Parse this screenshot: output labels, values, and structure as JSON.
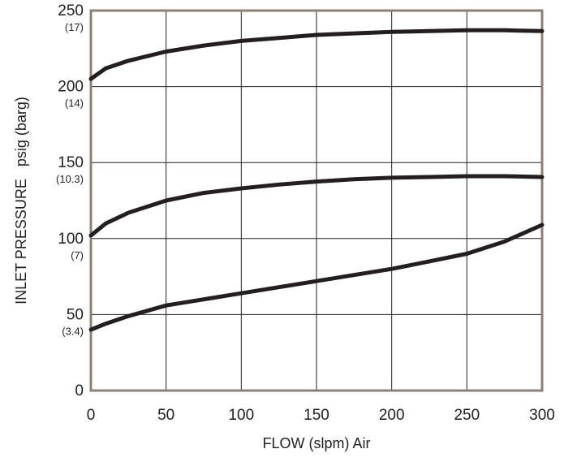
{
  "chart_data": {
    "type": "line",
    "xlabel": "FLOW (slpm) Air",
    "ylabel": "INLET PRESSURE   psig (barg)",
    "xlim": [
      0,
      300
    ],
    "ylim": [
      0,
      250
    ],
    "grid": true,
    "x_ticks": [
      "0",
      "50",
      "100",
      "150",
      "200",
      "250",
      "300"
    ],
    "y_ticks": [
      {
        "value": 0,
        "label": "0",
        "sub": ""
      },
      {
        "value": 50,
        "label": "50",
        "sub": "(3.4)"
      },
      {
        "value": 100,
        "label": "100",
        "sub": "(7)"
      },
      {
        "value": 150,
        "label": "150",
        "sub": "(10.3)"
      },
      {
        "value": 200,
        "label": "200",
        "sub": "(14)"
      },
      {
        "value": 250,
        "label": "250",
        "sub": "(17)"
      }
    ],
    "series": [
      {
        "points": [
          [
            0,
            205
          ],
          [
            10,
            212
          ],
          [
            25,
            217
          ],
          [
            50,
            223
          ],
          [
            75,
            227
          ],
          [
            100,
            230
          ],
          [
            125,
            232
          ],
          [
            150,
            234
          ],
          [
            175,
            235
          ],
          [
            200,
            236
          ],
          [
            225,
            236.5
          ],
          [
            250,
            237
          ],
          [
            275,
            237
          ],
          [
            300,
            236.5
          ]
        ]
      },
      {
        "points": [
          [
            0,
            102
          ],
          [
            10,
            110
          ],
          [
            25,
            117
          ],
          [
            50,
            125
          ],
          [
            75,
            130
          ],
          [
            100,
            133
          ],
          [
            125,
            135.5
          ],
          [
            150,
            137.5
          ],
          [
            175,
            139
          ],
          [
            200,
            140
          ],
          [
            225,
            140.5
          ],
          [
            250,
            141
          ],
          [
            275,
            141
          ],
          [
            300,
            140.5
          ]
        ]
      },
      {
        "points": [
          [
            0,
            40
          ],
          [
            10,
            44
          ],
          [
            25,
            49
          ],
          [
            50,
            56
          ],
          [
            75,
            60
          ],
          [
            100,
            64
          ],
          [
            125,
            68
          ],
          [
            150,
            72
          ],
          [
            175,
            76
          ],
          [
            200,
            80
          ],
          [
            225,
            85
          ],
          [
            250,
            90
          ],
          [
            275,
            98
          ],
          [
            300,
            109
          ]
        ]
      }
    ]
  }
}
